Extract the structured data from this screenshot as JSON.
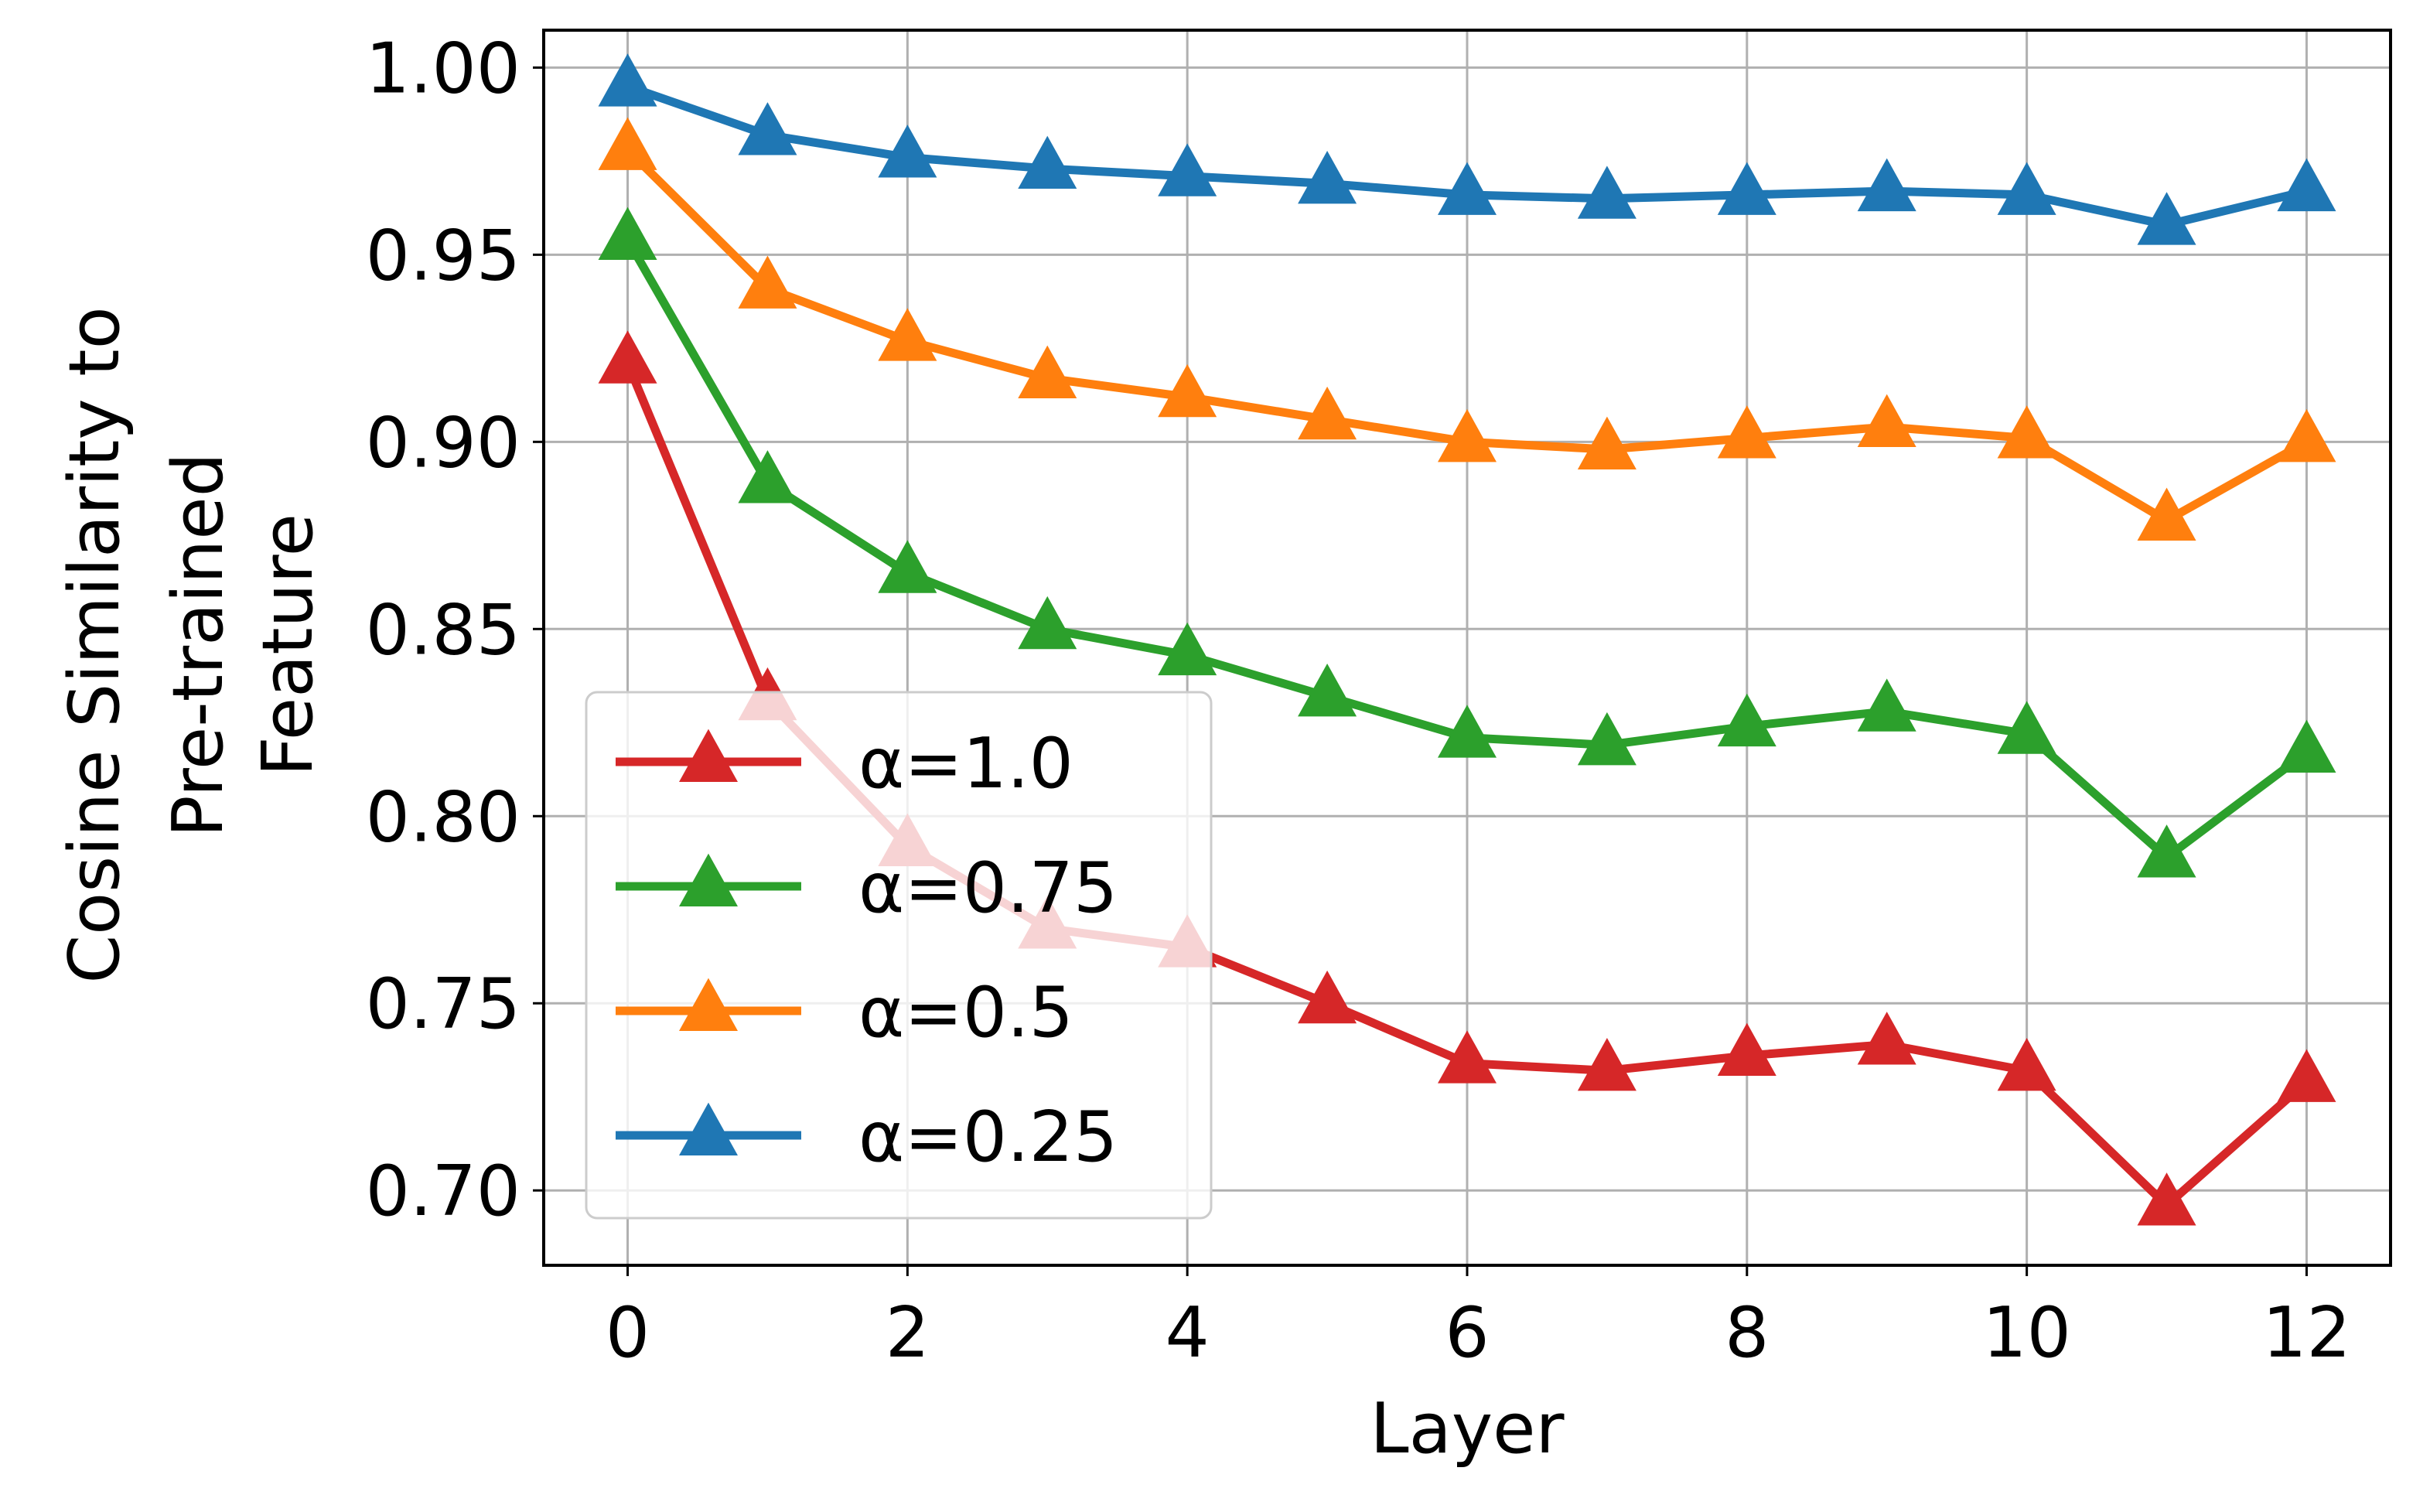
{
  "chart_data": {
    "type": "line",
    "xlabel": "Layer",
    "ylabel_lines": [
      "Cosine Similarity to",
      "Pre-trained",
      "Feature"
    ],
    "xlim": [
      -0.6,
      12.6
    ],
    "ylim": [
      0.68,
      1.01
    ],
    "xticks": [
      0,
      2,
      4,
      6,
      8,
      10,
      12
    ],
    "xtick_labels": [
      "0",
      "2",
      "4",
      "6",
      "8",
      "10",
      "12"
    ],
    "yticks": [
      0.7,
      0.75,
      0.8,
      0.85,
      0.9,
      0.95,
      1.0
    ],
    "ytick_labels": [
      "0.70",
      "0.75",
      "0.80",
      "0.85",
      "0.90",
      "0.95",
      "1.00"
    ],
    "grid": true,
    "legend_position": "lower-left",
    "marker": "triangle-up",
    "x": [
      0,
      1,
      2,
      3,
      4,
      5,
      6,
      7,
      8,
      9,
      10,
      11,
      12
    ],
    "series": [
      {
        "name": "α=1.0",
        "color": "#d62728",
        "values": [
          0.921,
          0.831,
          0.792,
          0.77,
          0.765,
          0.75,
          0.734,
          0.732,
          0.736,
          0.739,
          0.732,
          0.696,
          0.729
        ]
      },
      {
        "name": "α=0.75",
        "color": "#2ca02c",
        "values": [
          0.954,
          0.889,
          0.865,
          0.85,
          0.843,
          0.832,
          0.821,
          0.819,
          0.824,
          0.828,
          0.822,
          0.789,
          0.817
        ]
      },
      {
        "name": "α=0.5",
        "color": "#ff7f0e",
        "values": [
          0.978,
          0.941,
          0.927,
          0.917,
          0.912,
          0.906,
          0.9,
          0.898,
          0.901,
          0.904,
          0.901,
          0.879,
          0.9
        ]
      },
      {
        "name": "α=0.25",
        "color": "#1f77b4",
        "values": [
          0.995,
          0.982,
          0.976,
          0.973,
          0.971,
          0.969,
          0.966,
          0.965,
          0.966,
          0.967,
          0.966,
          0.958,
          0.967
        ]
      }
    ]
  }
}
